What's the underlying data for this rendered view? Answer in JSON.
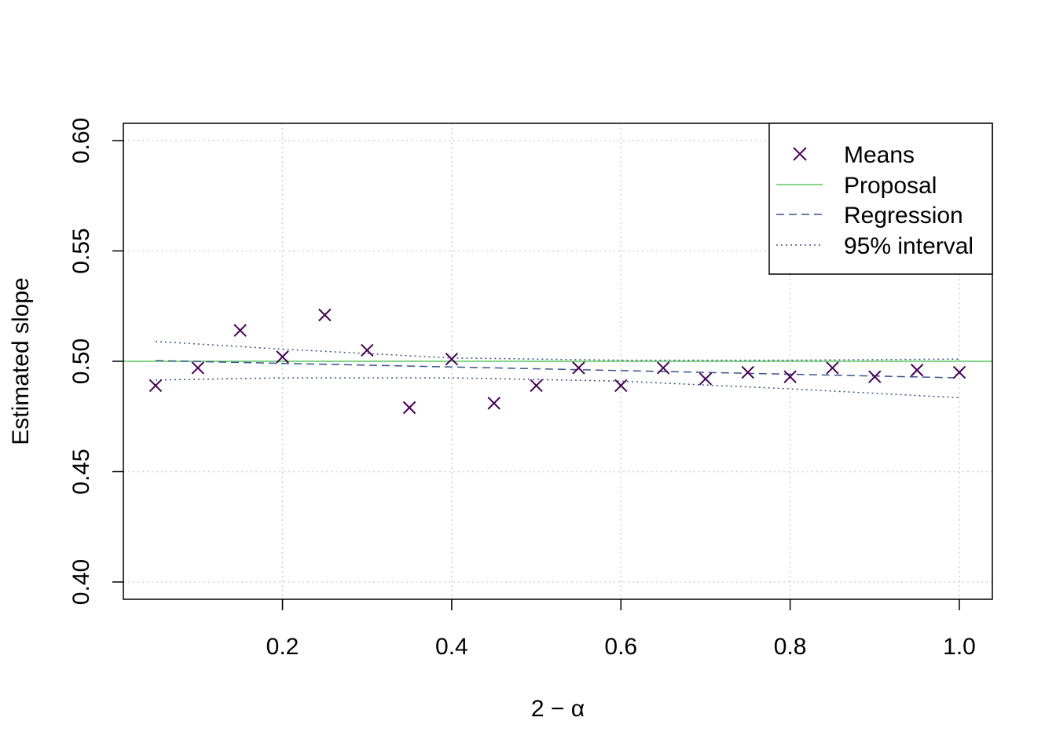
{
  "chart_data": {
    "type": "scatter",
    "xlabel": "2 − α",
    "ylabel": "Estimated slope",
    "xlim": [
      0.05,
      1.0
    ],
    "ylim": [
      0.4,
      0.6
    ],
    "x_ticks": [
      0.2,
      0.4,
      0.6,
      0.8,
      1.0
    ],
    "x_tick_labels": [
      "0.2",
      "0.4",
      "0.6",
      "0.8",
      "1.0"
    ],
    "y_ticks": [
      0.4,
      0.45,
      0.5,
      0.55,
      0.6
    ],
    "y_tick_labels": [
      "0.40",
      "0.45",
      "0.50",
      "0.55",
      "0.60"
    ],
    "grid": true,
    "legend_position": "top-right",
    "series": [
      {
        "name": "Means",
        "kind": "points",
        "marker": "x",
        "color": "#440154",
        "x": [
          0.05,
          0.1,
          0.15,
          0.2,
          0.25,
          0.3,
          0.35,
          0.4,
          0.45,
          0.5,
          0.55,
          0.6,
          0.65,
          0.7,
          0.75,
          0.8,
          0.85,
          0.9,
          0.95,
          1.0
        ],
        "y": [
          0.489,
          0.497,
          0.514,
          0.502,
          0.521,
          0.505,
          0.479,
          0.501,
          0.481,
          0.489,
          0.497,
          0.489,
          0.497,
          0.492,
          0.495,
          0.493,
          0.497,
          0.493,
          0.496,
          0.495
        ]
      },
      {
        "name": "Proposal",
        "kind": "hline",
        "style": "solid",
        "color": "#5ec962",
        "y": 0.5
      },
      {
        "name": "Regression",
        "kind": "line",
        "style": "dashed",
        "color": "#3b528b",
        "x": [
          0.05,
          1.0
        ],
        "y": [
          0.5003,
          0.4925
        ]
      },
      {
        "name": "95% interval",
        "kind": "band",
        "style": "dotted",
        "color": "#3b528b",
        "x": [
          0.05,
          0.2,
          0.4,
          0.6,
          0.8,
          1.0
        ],
        "upper": [
          0.509,
          0.5055,
          0.5015,
          0.5005,
          0.5005,
          0.501
        ],
        "lower": [
          0.4915,
          0.4925,
          0.4925,
          0.491,
          0.4875,
          0.4835
        ]
      }
    ]
  }
}
